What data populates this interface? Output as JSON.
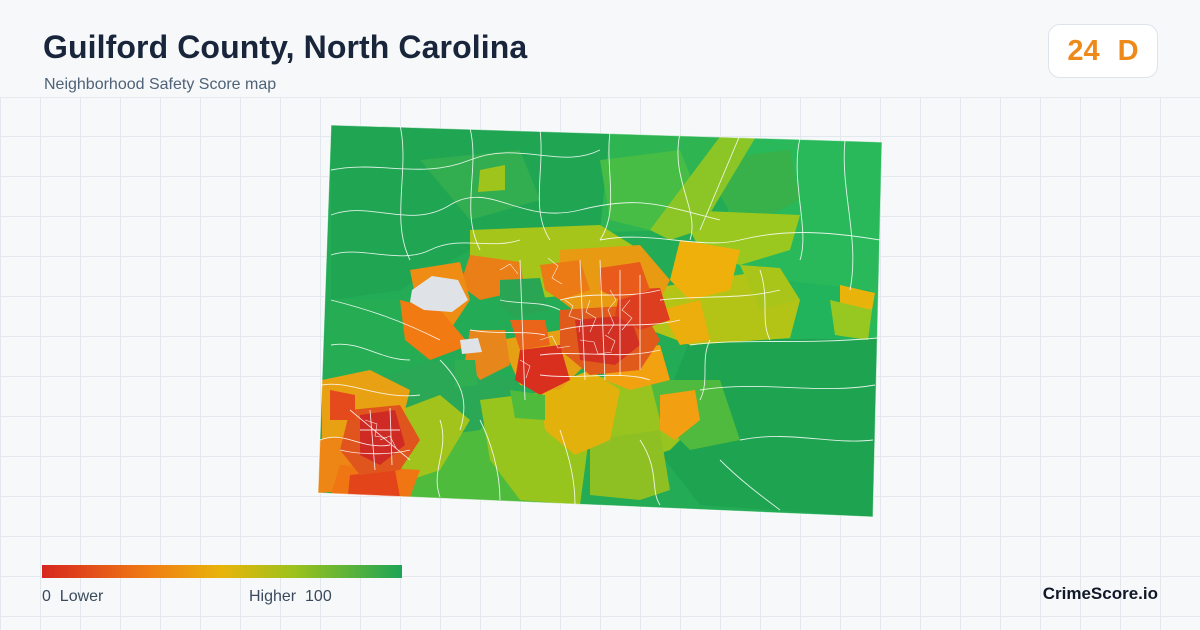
{
  "header": {
    "title": "Guilford County, North Carolina",
    "subtitle": "Neighborhood Safety Score map"
  },
  "score_badge": {
    "score": "24",
    "grade": "D",
    "color": "#ee8a1a"
  },
  "map": {
    "region": "Guilford County, North Carolina",
    "scale_colors": [
      "#d7261e",
      "#f07d14",
      "#e8b40b",
      "#9cc21d",
      "#1ea456"
    ],
    "no_data_color": "#dfe3e8"
  },
  "legend": {
    "min_value": "0",
    "min_label": "Lower",
    "max_label": "Higher",
    "max_value": "100"
  },
  "footer": {
    "brand": "CrimeScore.io"
  }
}
